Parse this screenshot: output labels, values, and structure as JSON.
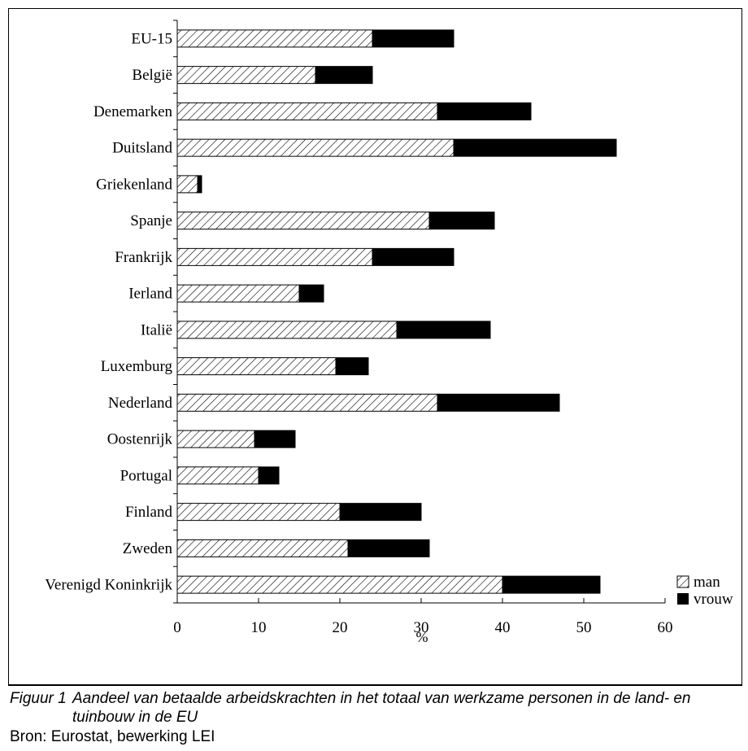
{
  "chart_data": {
    "type": "bar",
    "orientation": "horizontal",
    "stacked": true,
    "categories": [
      "EU-15",
      "België",
      "Denemarken",
      "Duitsland",
      "Griekenland",
      "Spanje",
      "Frankrijk",
      "Ierland",
      "Italië",
      "Luxemburg",
      "Nederland",
      "Oostenrijk",
      "Portugal",
      "Finland",
      "Zweden",
      "Verenigd Koninkrijk"
    ],
    "series": [
      {
        "name": "man",
        "values": [
          24,
          17,
          32,
          34,
          2.5,
          31,
          24,
          15,
          27,
          19.5,
          32,
          9.5,
          10,
          20,
          21,
          40
        ],
        "fill": "hatched"
      },
      {
        "name": "vrouw",
        "values": [
          10,
          7,
          11.5,
          20,
          0.5,
          8,
          10,
          3,
          11.5,
          4,
          15,
          5,
          2.5,
          10,
          10,
          12
        ],
        "fill": "solid",
        "color": "#000000"
      }
    ],
    "xlim": [
      0,
      60
    ],
    "xticks": [
      "0",
      "10",
      "20",
      "30",
      "40",
      "50",
      "60"
    ],
    "xlabel": "%",
    "grid": false,
    "legend_position": "bottom-right"
  },
  "caption": {
    "figure_label": "Figuur 1",
    "figure_text": "Aandeel van betaalde arbeidskrachten in het totaal van werkzame personen in de land- en tuinbouw in de EU",
    "source": "Bron: Eurostat, bewerking LEI"
  }
}
